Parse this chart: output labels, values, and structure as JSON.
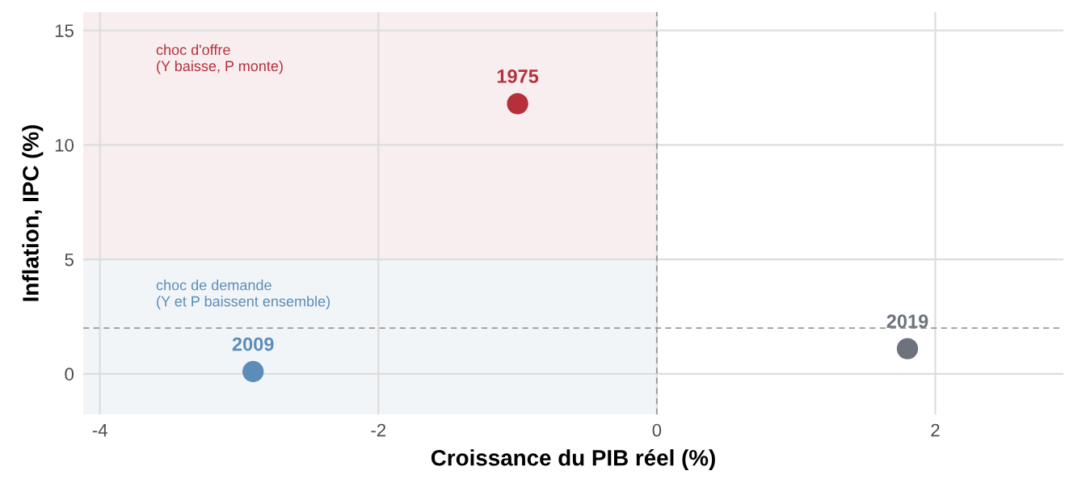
{
  "chart_data": {
    "type": "scatter",
    "xlabel": "Croissance du PIB réel (%)",
    "ylabel": "Inflation, IPC (%)",
    "series": [
      {
        "name": "1975",
        "color": "#b5303b",
        "x": [
          -1.0
        ],
        "values": [
          11.8
        ]
      },
      {
        "name": "2009",
        "color": "#5b8db8",
        "x": [
          -2.9
        ],
        "values": [
          0.1
        ]
      },
      {
        "name": "2019",
        "color": "#6c737c",
        "x": [
          1.8
        ],
        "values": [
          1.1
        ]
      }
    ],
    "xlim": [
      -4.12,
      2.92
    ],
    "xticks": [
      -4,
      -2,
      0,
      2
    ],
    "ylim": [
      -1.77,
      15.8
    ],
    "yticks": [
      0,
      5,
      10,
      15
    ],
    "bands": [
      {
        "axis": "y",
        "from": 5,
        "to": 15.8,
        "color": "#f8eef0",
        "label": "choc d'offre\n(Y baisse, P monte)"
      },
      {
        "axis": "y",
        "from": -1.77,
        "to": 5,
        "color": "#f1f5f8",
        "label": "choc de demande\n(Y et P baissent ensemble)"
      }
    ],
    "ref_lines": [
      {
        "axis": "x",
        "value": 0,
        "color": "#999999",
        "line_style": "dashed"
      },
      {
        "axis": "y",
        "value": 2,
        "color": "#999999",
        "line_style": "dashed"
      }
    ],
    "grid": true,
    "marker": "circle",
    "legend": false
  }
}
